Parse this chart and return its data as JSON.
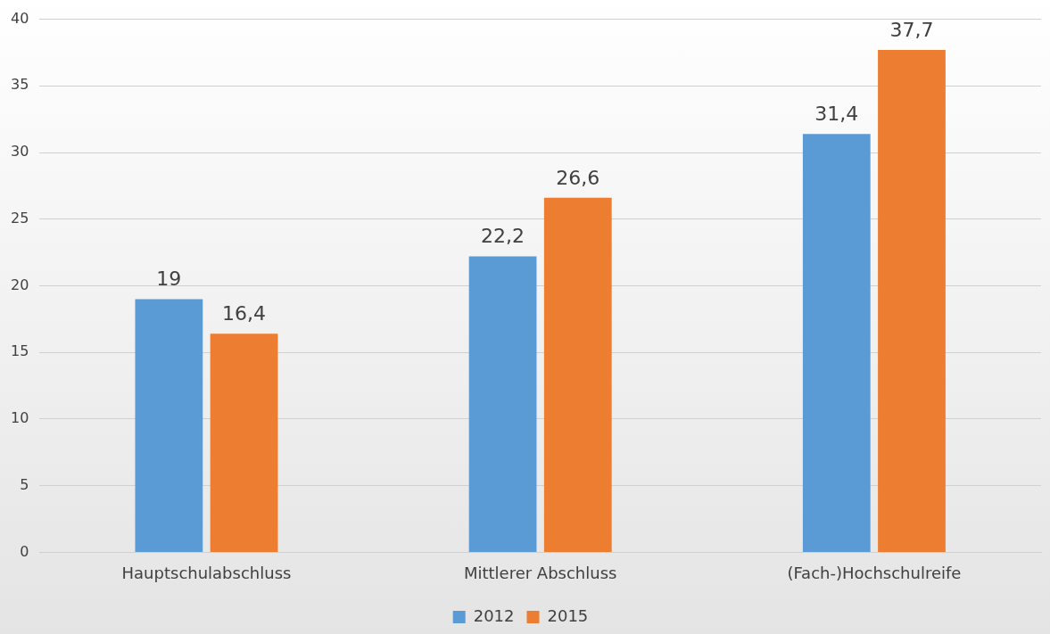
{
  "chart_data": {
    "type": "bar",
    "categories": [
      "Hauptschulabschluss",
      "Mittlerer Abschluss",
      "(Fach-)Hochschulreife"
    ],
    "series": [
      {
        "name": "2012",
        "color": "#5b9bd5",
        "values": [
          19,
          22.2,
          31.4
        ],
        "value_labels": [
          "19",
          "22,2",
          "31,4"
        ]
      },
      {
        "name": "2015",
        "color": "#ed7d31",
        "values": [
          16.4,
          26.6,
          37.7
        ],
        "value_labels": [
          "16,4",
          "26,6",
          "37,7"
        ]
      }
    ],
    "ylim": [
      0,
      40
    ],
    "yticks": [
      0,
      5,
      10,
      15,
      20,
      25,
      30,
      35,
      40
    ],
    "grid": "y",
    "legend": "bottom"
  }
}
